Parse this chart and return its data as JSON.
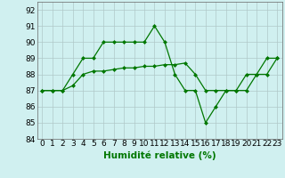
{
  "line1_x": [
    0,
    1,
    2,
    3,
    4,
    5,
    6,
    7,
    8,
    9,
    10,
    11,
    12,
    13,
    14,
    15,
    16,
    17,
    18,
    19,
    20,
    21,
    22,
    23
  ],
  "line1_y": [
    87,
    87,
    87,
    88,
    89,
    89,
    90,
    90,
    90,
    90,
    90,
    91,
    90,
    88,
    87,
    87,
    85,
    86,
    87,
    87,
    88,
    88,
    89,
    89
  ],
  "line2_x": [
    0,
    1,
    2,
    3,
    4,
    5,
    6,
    7,
    8,
    9,
    10,
    11,
    12,
    13,
    14,
    15,
    16,
    17,
    18,
    19,
    20,
    21,
    22,
    23
  ],
  "line2_y": [
    87,
    87,
    87,
    87.3,
    88,
    88.2,
    88.2,
    88.3,
    88.4,
    88.4,
    88.5,
    88.5,
    88.6,
    88.6,
    88.7,
    88.0,
    87.0,
    87.0,
    87.0,
    87.0,
    87.0,
    88.0,
    88.0,
    89.0
  ],
  "line_color": "#007700",
  "marker": "D",
  "markersize": 2.5,
  "xlabel": "Humidité relative (%)",
  "ylim": [
    84,
    92.5
  ],
  "yticks": [
    84,
    85,
    86,
    87,
    88,
    89,
    90,
    91,
    92
  ],
  "xticks": [
    0,
    1,
    2,
    3,
    4,
    5,
    6,
    7,
    8,
    9,
    10,
    11,
    12,
    13,
    14,
    15,
    16,
    17,
    18,
    19,
    20,
    21,
    22,
    23
  ],
  "bg_color": "#d0f0f0",
  "grid_color": "#b0c8c8",
  "tick_fontsize": 6.5,
  "xlabel_fontsize": 7.5
}
